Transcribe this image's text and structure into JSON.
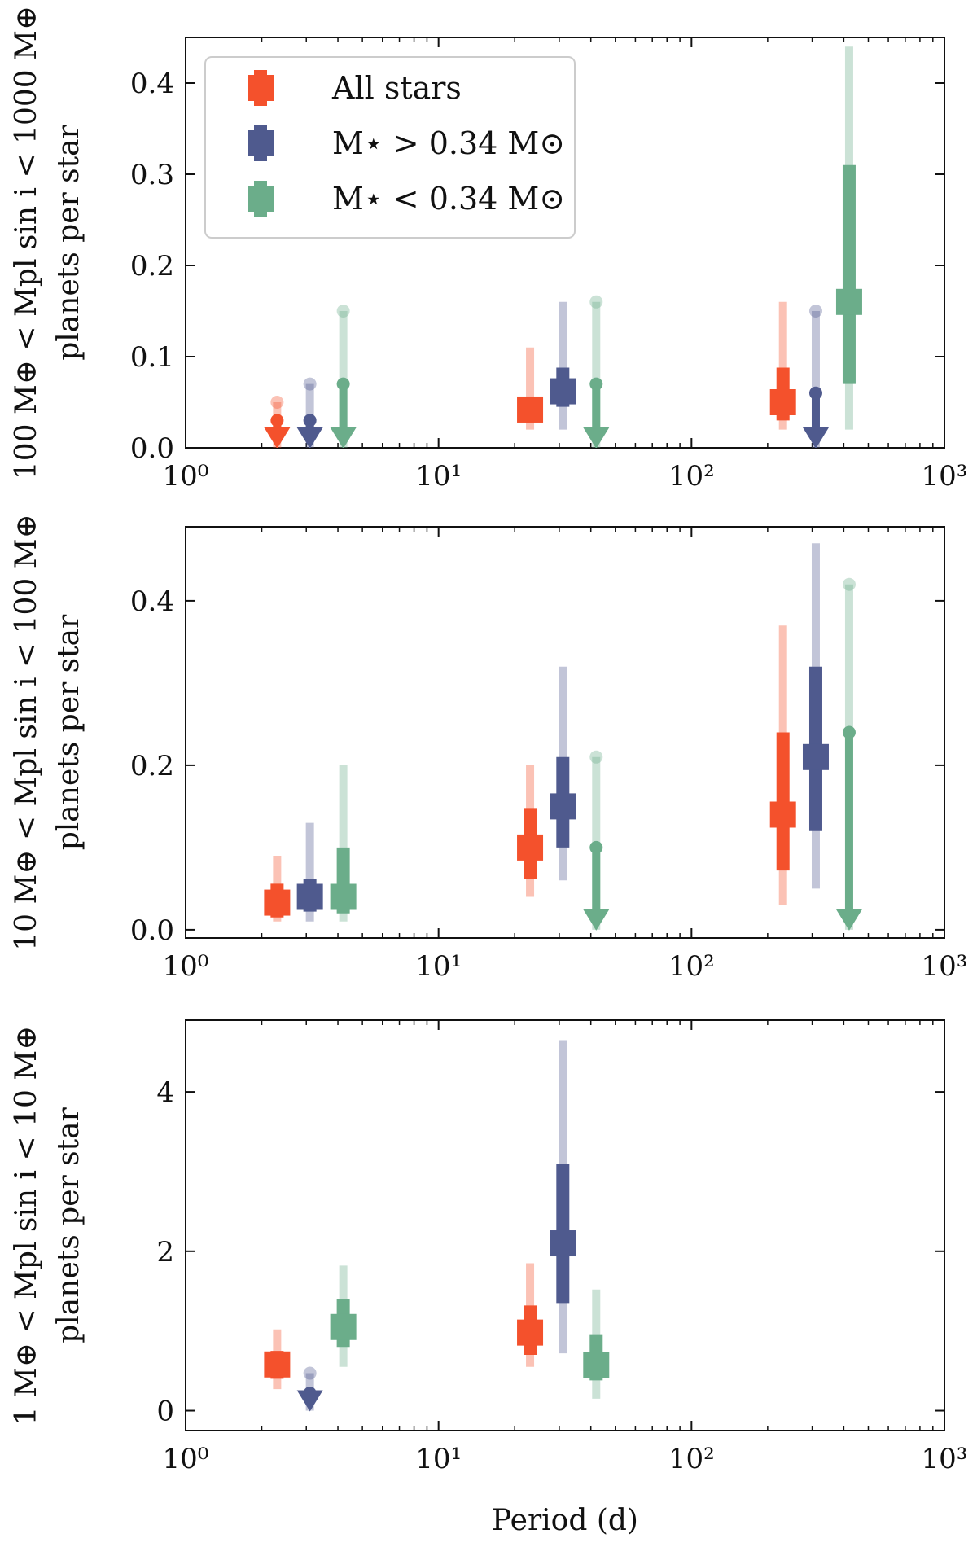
{
  "colors": {
    "all_stars": "#f4512c",
    "high_mass": "#4f5a8e",
    "low_mass": "#6bad8a",
    "axis": "#111111"
  },
  "chart_data": [
    {
      "type": "errorbar",
      "xscale": "log",
      "xlim": [
        1,
        1000
      ],
      "ylim": [
        0,
        0.45
      ],
      "xlabel": "",
      "ylabel_line1": "100 M⊕ < Mpl sin i < 1000 M⊕",
      "ylabel_line2": "planets per star",
      "xticks": [
        {
          "value": 1,
          "label": "10⁰"
        },
        {
          "value": 10,
          "label": "10¹"
        },
        {
          "value": 100,
          "label": "10²"
        },
        {
          "value": 1000,
          "label": "10³"
        }
      ],
      "yticks": [
        {
          "value": 0,
          "label": "0.0"
        },
        {
          "value": 0.1,
          "label": "0.1"
        },
        {
          "value": 0.2,
          "label": "0.2"
        },
        {
          "value": 0.3,
          "label": "0.3"
        },
        {
          "value": 0.4,
          "label": "0.4"
        }
      ],
      "legend": {
        "position": "upper-left",
        "entries": [
          {
            "key": "all_stars",
            "label": "All stars"
          },
          {
            "key": "high_mass",
            "label": "M⋆ > 0.34 M⊙"
          },
          {
            "key": "low_mass",
            "label": "M⋆ < 0.34 M⊙"
          }
        ]
      },
      "series": [
        {
          "key": "all_stars",
          "name": "All stars",
          "points": [
            {
              "x": 2.3,
              "upper_limit": true,
              "val68": 0.03,
              "val95": 0.05
            },
            {
              "x": 23,
              "y": 0.042,
              "lo68": 0.028,
              "hi68": 0.055,
              "lo95": 0.02,
              "hi95": 0.11
            },
            {
              "x": 230,
              "y": 0.05,
              "lo68": 0.03,
              "hi68": 0.088,
              "lo95": 0.02,
              "hi95": 0.16
            }
          ]
        },
        {
          "key": "high_mass",
          "name": "M⋆ > 0.34 M⊙",
          "points": [
            {
              "x": 3.1,
              "upper_limit": true,
              "val68": 0.03,
              "val95": 0.07
            },
            {
              "x": 31,
              "y": 0.062,
              "lo68": 0.045,
              "hi68": 0.088,
              "lo95": 0.02,
              "hi95": 0.16
            },
            {
              "x": 310,
              "upper_limit": true,
              "val68": 0.06,
              "val95": 0.15
            }
          ]
        },
        {
          "key": "low_mass",
          "name": "M⋆ < 0.34 M⊙",
          "points": [
            {
              "x": 4.2,
              "upper_limit": true,
              "val68": 0.07,
              "val95": 0.15
            },
            {
              "x": 42,
              "upper_limit": true,
              "val68": 0.07,
              "val95": 0.16
            },
            {
              "x": 420,
              "y": 0.16,
              "lo68": 0.07,
              "hi68": 0.31,
              "lo95": 0.02,
              "hi95": 0.44
            }
          ]
        }
      ]
    },
    {
      "type": "errorbar",
      "xscale": "log",
      "xlim": [
        1,
        1000
      ],
      "ylim": [
        -0.01,
        0.49
      ],
      "xlabel": "",
      "ylabel_line1": "10 M⊕ < Mpl sin i < 100 M⊕",
      "ylabel_line2": "planets per star",
      "xticks": [
        {
          "value": 1,
          "label": "10⁰"
        },
        {
          "value": 10,
          "label": "10¹"
        },
        {
          "value": 100,
          "label": "10²"
        },
        {
          "value": 1000,
          "label": "10³"
        }
      ],
      "yticks": [
        {
          "value": 0,
          "label": "0.0"
        },
        {
          "value": 0.2,
          "label": "0.2"
        },
        {
          "value": 0.4,
          "label": "0.4"
        }
      ],
      "series": [
        {
          "key": "all_stars",
          "name": "All stars",
          "points": [
            {
              "x": 2.3,
              "y": 0.033,
              "lo68": 0.015,
              "hi68": 0.056,
              "lo95": 0.01,
              "hi95": 0.09
            },
            {
              "x": 23,
              "y": 0.1,
              "lo68": 0.062,
              "hi68": 0.148,
              "lo95": 0.04,
              "hi95": 0.2
            },
            {
              "x": 230,
              "y": 0.14,
              "lo68": 0.072,
              "hi68": 0.24,
              "lo95": 0.03,
              "hi95": 0.37
            }
          ]
        },
        {
          "key": "high_mass",
          "name": "M⋆ > 0.34 M⊙",
          "points": [
            {
              "x": 3.1,
              "y": 0.04,
              "lo68": 0.022,
              "hi68": 0.062,
              "lo95": 0.01,
              "hi95": 0.13
            },
            {
              "x": 31,
              "y": 0.15,
              "lo68": 0.1,
              "hi68": 0.21,
              "lo95": 0.06,
              "hi95": 0.32
            },
            {
              "x": 310,
              "y": 0.21,
              "lo68": 0.12,
              "hi68": 0.32,
              "lo95": 0.05,
              "hi95": 0.47
            }
          ]
        },
        {
          "key": "low_mass",
          "name": "M⋆ < 0.34 M⊙",
          "points": [
            {
              "x": 4.2,
              "y": 0.04,
              "lo68": 0.02,
              "hi68": 0.1,
              "lo95": 0.01,
              "hi95": 0.2
            },
            {
              "x": 42,
              "upper_limit": true,
              "val68": 0.1,
              "val95": 0.21
            },
            {
              "x": 420,
              "upper_limit": true,
              "val68": 0.24,
              "val95": 0.42
            }
          ]
        }
      ]
    },
    {
      "type": "errorbar",
      "xscale": "log",
      "xlim": [
        1,
        1000
      ],
      "ylim": [
        -0.25,
        4.9
      ],
      "xlabel": "Period (d)",
      "ylabel_line1": "1 M⊕ < Mpl sin i < 10 M⊕",
      "ylabel_line2": "planets per star",
      "xticks": [
        {
          "value": 1,
          "label": "10⁰"
        },
        {
          "value": 10,
          "label": "10¹"
        },
        {
          "value": 100,
          "label": "10²"
        },
        {
          "value": 1000,
          "label": "10³"
        }
      ],
      "yticks": [
        {
          "value": 0,
          "label": "0"
        },
        {
          "value": 2,
          "label": "2"
        },
        {
          "value": 4,
          "label": "4"
        }
      ],
      "series": [
        {
          "key": "all_stars",
          "name": "All stars",
          "points": [
            {
              "x": 2.3,
              "y": 0.58,
              "lo68": 0.4,
              "hi68": 0.75,
              "lo95": 0.27,
              "hi95": 1.02
            },
            {
              "x": 23,
              "y": 0.98,
              "lo68": 0.7,
              "hi68": 1.32,
              "lo95": 0.55,
              "hi95": 1.85
            }
          ]
        },
        {
          "key": "high_mass",
          "name": "M⋆ > 0.34 M⊙",
          "points": [
            {
              "x": 3.1,
              "upper_limit": true,
              "val68": 0.22,
              "val95": 0.47
            },
            {
              "x": 31,
              "y": 2.1,
              "lo68": 1.35,
              "hi68": 3.1,
              "lo95": 0.72,
              "hi95": 4.65
            }
          ]
        },
        {
          "key": "low_mass",
          "name": "M⋆ < 0.34 M⊙",
          "points": [
            {
              "x": 4.2,
              "y": 1.05,
              "lo68": 0.8,
              "hi68": 1.4,
              "lo95": 0.55,
              "hi95": 1.82
            },
            {
              "x": 42,
              "y": 0.57,
              "lo68": 0.38,
              "hi68": 0.95,
              "lo95": 0.15,
              "hi95": 1.52
            }
          ]
        }
      ]
    }
  ]
}
